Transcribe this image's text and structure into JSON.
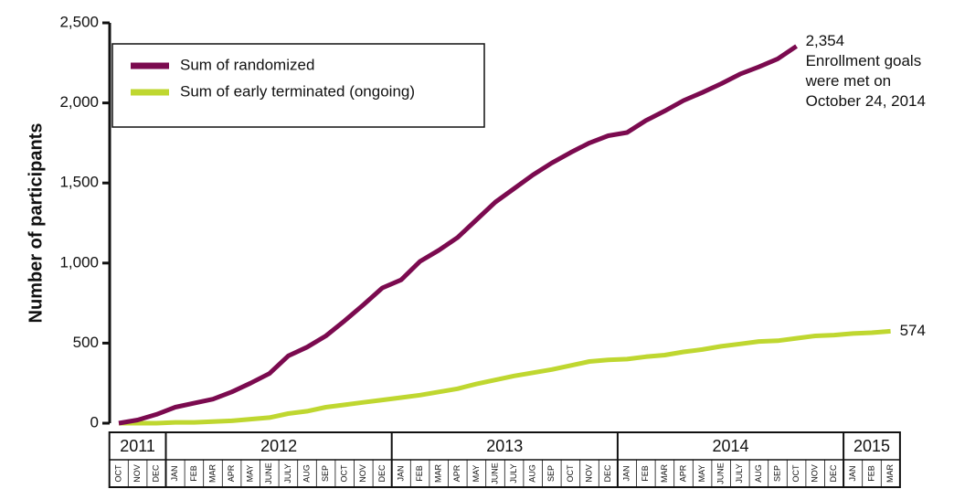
{
  "chart_data": {
    "type": "line",
    "y_label": "Number of participants",
    "year_groups": [
      {
        "label": "2011",
        "months": [
          "OCT",
          "NOV",
          "DEC"
        ]
      },
      {
        "label": "2012",
        "months": [
          "JAN",
          "FEB",
          "MAR",
          "APR",
          "MAY",
          "JUNE",
          "JULY",
          "AUG",
          "SEP",
          "OCT",
          "NOV",
          "DEC"
        ]
      },
      {
        "label": "2013",
        "months": [
          "JAN",
          "FEB",
          "MAR",
          "APR",
          "MAY",
          "JUNE",
          "JULY",
          "AUG",
          "SEP",
          "OCT",
          "NOV",
          "DEC"
        ]
      },
      {
        "label": "2014",
        "months": [
          "JAN",
          "FEB",
          "MAR",
          "APR",
          "MAY",
          "JUNE",
          "JULY",
          "AUG",
          "SEP",
          "OCT",
          "NOV",
          "DEC"
        ]
      },
      {
        "label": "2015",
        "months": [
          "JAN",
          "FEB",
          "MAR"
        ]
      }
    ],
    "series": [
      {
        "name": "Sum of randomized",
        "color": "#7b0a4f",
        "values": [
          0,
          20,
          55,
          100,
          125,
          150,
          195,
          250,
          310,
          420,
          475,
          545,
          640,
          740,
          845,
          895,
          1010,
          1080,
          1160,
          1270,
          1380,
          1465,
          1550,
          1625,
          1690,
          1750,
          1795,
          1815,
          1890,
          1950,
          2015,
          2065,
          2120,
          2180,
          2225,
          2275,
          2354,
          null,
          null,
          null,
          null,
          null
        ],
        "value_labels": [
          null,
          null,
          null,
          null,
          null,
          null,
          null,
          null,
          null,
          null,
          null,
          null,
          null,
          null,
          null,
          null,
          null,
          null,
          null,
          null,
          null,
          null,
          null,
          null,
          null,
          null,
          null,
          null,
          null,
          null,
          null,
          null,
          null,
          null,
          null,
          null,
          "2,354",
          null,
          null,
          null,
          null,
          null
        ]
      },
      {
        "name": "Sum of early terminated (ongoing)",
        "color": "#bfd730",
        "values": [
          0,
          0,
          0,
          5,
          5,
          10,
          15,
          25,
          35,
          60,
          75,
          100,
          115,
          130,
          145,
          160,
          175,
          195,
          215,
          245,
          270,
          295,
          315,
          335,
          360,
          385,
          395,
          400,
          415,
          425,
          445,
          460,
          480,
          495,
          510,
          515,
          530,
          545,
          550,
          560,
          565,
          574
        ],
        "value_labels": [
          null,
          null,
          null,
          null,
          null,
          null,
          null,
          null,
          null,
          null,
          null,
          null,
          null,
          null,
          null,
          null,
          null,
          null,
          null,
          null,
          null,
          null,
          null,
          null,
          null,
          null,
          null,
          null,
          null,
          null,
          null,
          null,
          null,
          null,
          null,
          null,
          null,
          null,
          null,
          null,
          null,
          "574"
        ]
      }
    ],
    "annotation": [
      "Enrollment goals",
      "were met on",
      "October 24, 2014"
    ],
    "ylim": [
      0,
      2500
    ],
    "yticks": [
      0,
      {
        "value": 500,
        "label": "500"
      },
      {
        "value": 1000,
        "label": "1,000"
      },
      {
        "value": 1500,
        "label": "1,500"
      },
      {
        "value": 2000,
        "label": "2,000"
      },
      {
        "value": 2500,
        "label": "2,500"
      }
    ],
    "grid": false,
    "legend": "top-left"
  }
}
